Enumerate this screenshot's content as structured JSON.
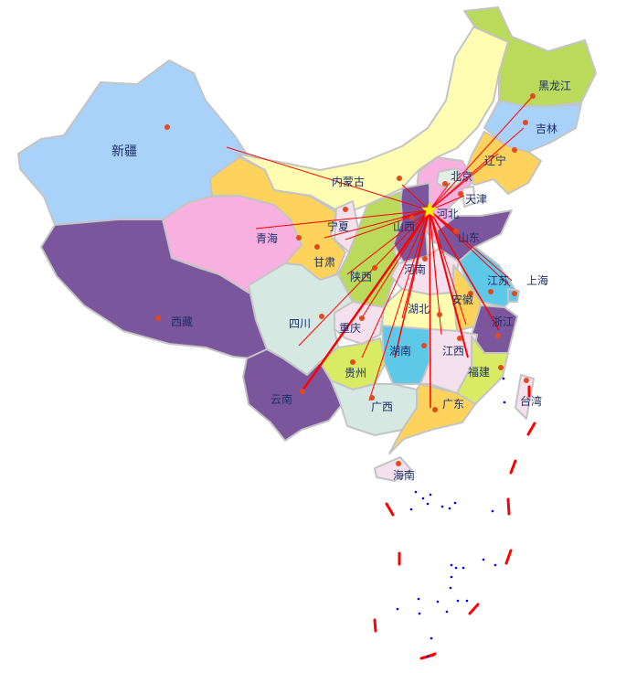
{
  "map": {
    "center_province": "河北",
    "center_marker_icon": "star-icon",
    "colors": {
      "line": "#ff0000",
      "dot": "#e04a1c",
      "star": "#ffee00",
      "label": "#1a2f6a",
      "border": "#c4c4c4",
      "islands": "#0000ff",
      "sea_boundary": "#ff0000"
    },
    "provinces": [
      {
        "id": "xinjiang",
        "name": "新疆",
        "color": "#a9d2fa"
      },
      {
        "id": "xizang",
        "name": "西藏",
        "color": "#7b569c"
      },
      {
        "id": "qinghai",
        "name": "青海",
        "color": "#f8b0e0"
      },
      {
        "id": "gansu",
        "name": "甘肃",
        "color": "#fdd35c"
      },
      {
        "id": "neimenggu",
        "name": "内蒙古",
        "color": "#fffdb2"
      },
      {
        "id": "heilongjiang",
        "name": "黑龙江",
        "color": "#b9da5a"
      },
      {
        "id": "jilin",
        "name": "吉林",
        "color": "#a9d2fa"
      },
      {
        "id": "liaoning",
        "name": "辽宁",
        "color": "#fdd35c"
      },
      {
        "id": "hebei",
        "name": "河北",
        "color": "#f8b0e0"
      },
      {
        "id": "beijing",
        "name": "北京",
        "color": "#e2efe6"
      },
      {
        "id": "tianjin",
        "name": "天津",
        "color": "#fdf6fb"
      },
      {
        "id": "shanxi",
        "name": "山西",
        "color": "#7b569c"
      },
      {
        "id": "shandong",
        "name": "山东",
        "color": "#7b569c"
      },
      {
        "id": "ningxia",
        "name": "宁夏",
        "color": "#f5e0ee"
      },
      {
        "id": "shaanxi",
        "name": "陕西",
        "color": "#b9da5a"
      },
      {
        "id": "henan",
        "name": "河南",
        "color": "#f5e0ee"
      },
      {
        "id": "jiangsu",
        "name": "江苏",
        "color": "#5ec8e8"
      },
      {
        "id": "anhui",
        "name": "安徽",
        "color": "#fdd35c"
      },
      {
        "id": "shanghai",
        "name": "上海",
        "color": "#5ec8e8"
      },
      {
        "id": "zhejiang",
        "name": "浙江",
        "color": "#7b569c"
      },
      {
        "id": "hubei",
        "name": "湖北",
        "color": "#fffdb2"
      },
      {
        "id": "sichuan",
        "name": "四川",
        "color": "#d5e9e2"
      },
      {
        "id": "chongqing",
        "name": "重庆",
        "color": "#f5e0ee"
      },
      {
        "id": "guizhou",
        "name": "贵州",
        "color": "#d9eb62"
      },
      {
        "id": "hunan",
        "name": "湖南",
        "color": "#5ec8e8"
      },
      {
        "id": "jiangxi",
        "name": "江西",
        "color": "#f5e0ee"
      },
      {
        "id": "fujian",
        "name": "福建",
        "color": "#d9eb62"
      },
      {
        "id": "yunnan",
        "name": "云南",
        "color": "#7b569c"
      },
      {
        "id": "guangxi",
        "name": "广西",
        "color": "#d5e9e2"
      },
      {
        "id": "guangdong",
        "name": "广东",
        "color": "#fdd35c"
      },
      {
        "id": "hainan",
        "name": "海南",
        "color": "#f5e0ee"
      },
      {
        "id": "taiwan",
        "name": "台湾",
        "color": "#f5e0ee"
      }
    ]
  }
}
